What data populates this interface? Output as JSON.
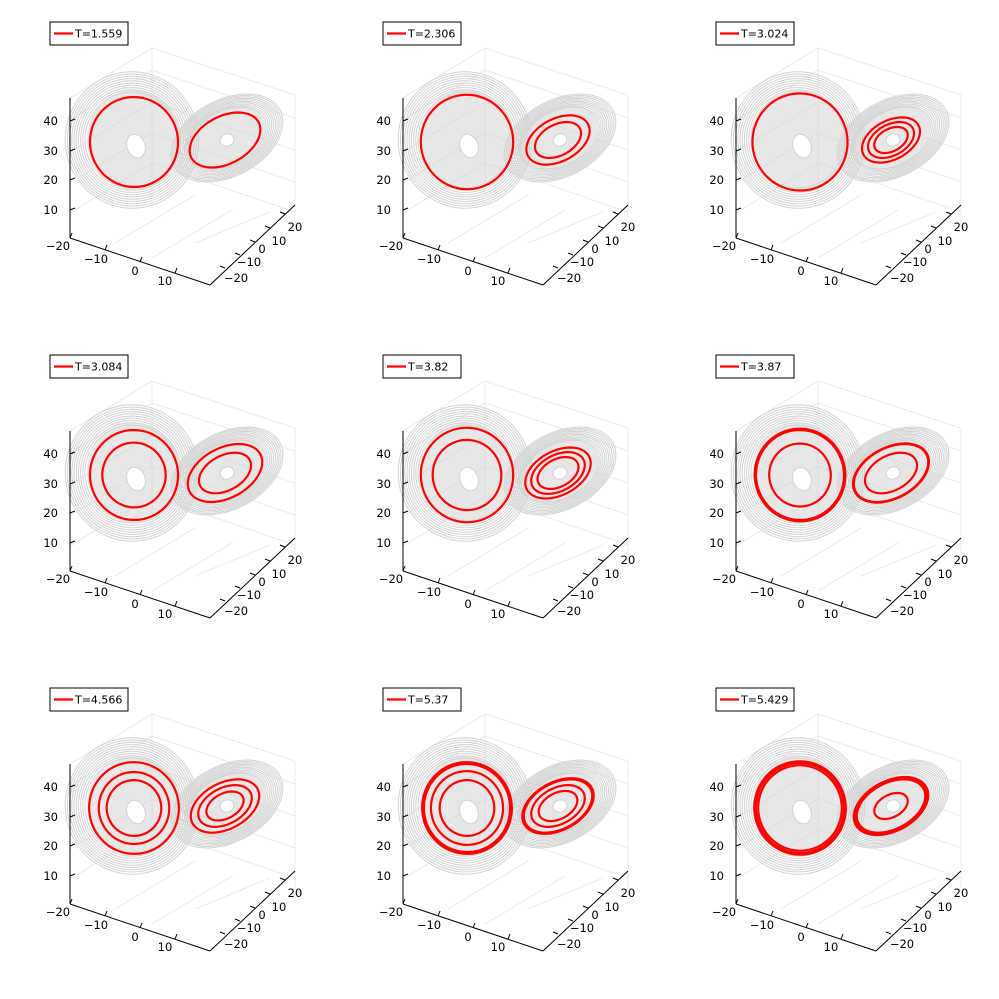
{
  "chart_data": [
    {
      "type": "line",
      "legend": "T=1.559",
      "loops": {
        "left": [
          1.0
        ],
        "right": [
          0.95
        ]
      },
      "legend_position": "top-left",
      "ticks": {
        "z": [
          "10",
          "20",
          "30",
          "40"
        ],
        "x": [
          "−20",
          "−10",
          "0",
          "10"
        ],
        "y": [
          "20",
          "10",
          "0",
          "−10",
          "−20"
        ]
      },
      "colors": {
        "orbit": "#ff0000",
        "attractor": "#d3d3d3"
      }
    },
    {
      "type": "line",
      "legend": "T=2.306",
      "loops": {
        "left": [
          1.05
        ],
        "right": [
          0.62,
          0.85
        ]
      },
      "legend_position": "top-left",
      "ticks": {
        "z": [
          "10",
          "20",
          "30",
          "40"
        ],
        "x": [
          "−20",
          "−10",
          "0",
          "10"
        ],
        "y": [
          "20",
          "10",
          "0",
          "−10",
          "−20"
        ]
      },
      "colors": {
        "orbit": "#ff0000",
        "attractor": "#d3d3d3"
      }
    },
    {
      "type": "line",
      "legend": "T=3.024",
      "loops": {
        "left": [
          1.08
        ],
        "right": [
          0.45,
          0.62,
          0.78
        ]
      },
      "legend_position": "top-left",
      "ticks": {
        "z": [
          "10",
          "20",
          "30",
          "40"
        ],
        "x": [
          "−20",
          "−10",
          "0",
          "10"
        ],
        "y": [
          "20",
          "10",
          "0",
          "−10",
          "−20"
        ]
      },
      "colors": {
        "orbit": "#ff0000",
        "attractor": "#d3d3d3"
      }
    },
    {
      "type": "line",
      "legend": "T=3.084",
      "loops": {
        "left": [
          0.72,
          1.0
        ],
        "right": [
          0.7,
          1.0
        ]
      },
      "legend_position": "top-left",
      "ticks": {
        "z": [
          "10",
          "20",
          "30",
          "40"
        ],
        "x": [
          "−20",
          "−10",
          "0",
          "10"
        ],
        "y": [
          "20",
          "10",
          "0",
          "−10",
          "−20"
        ]
      },
      "colors": {
        "orbit": "#ff0000",
        "attractor": "#d3d3d3"
      }
    },
    {
      "type": "line",
      "legend": "T=3.82",
      "loops": {
        "left": [
          0.78,
          1.05
        ],
        "right": [
          0.55,
          0.72,
          0.88
        ]
      },
      "legend_position": "top-left",
      "ticks": {
        "z": [
          "10",
          "20",
          "30",
          "40"
        ],
        "x": [
          "−20",
          "−10",
          "0",
          "10"
        ],
        "y": [
          "20",
          "10",
          "0",
          "−10",
          "−20"
        ]
      },
      "colors": {
        "orbit": "#ff0000",
        "attractor": "#d3d3d3"
      }
    },
    {
      "type": "line",
      "legend": "T=3.87",
      "loops": {
        "left": [
          0.7,
          1.0,
          1.03
        ],
        "right": [
          0.7,
          1.0,
          1.02
        ]
      },
      "legend_position": "top-left",
      "ticks": {
        "z": [
          "10",
          "20",
          "30",
          "40"
        ],
        "x": [
          "−20",
          "−10",
          "0",
          "10"
        ],
        "y": [
          "20",
          "10",
          "0",
          "−10",
          "−20"
        ]
      },
      "colors": {
        "orbit": "#ff0000",
        "attractor": "#d3d3d3"
      }
    },
    {
      "type": "line",
      "legend": "T=4.566",
      "loops": {
        "left": [
          0.62,
          0.8,
          1.02
        ],
        "right": [
          0.5,
          0.72,
          0.92
        ]
      },
      "legend_position": "top-left",
      "ticks": {
        "z": [
          "10",
          "20",
          "30",
          "40"
        ],
        "x": [
          "−20",
          "−10",
          "0",
          "10"
        ],
        "y": [
          "20",
          "10",
          "0",
          "−10",
          "−20"
        ]
      },
      "colors": {
        "orbit": "#ff0000",
        "attractor": "#d3d3d3"
      }
    },
    {
      "type": "line",
      "legend": "T=5.37",
      "loops": {
        "left": [
          0.62,
          0.82,
          0.98,
          1.02
        ],
        "right": [
          0.52,
          0.72,
          0.92,
          0.96
        ]
      },
      "legend_position": "top-left",
      "ticks": {
        "z": [
          "10",
          "20",
          "30",
          "40"
        ],
        "x": [
          "−20",
          "−10",
          "0",
          "10"
        ],
        "y": [
          "20",
          "10",
          "0",
          "−10",
          "−20"
        ]
      },
      "colors": {
        "orbit": "#ff0000",
        "attractor": "#d3d3d3"
      }
    },
    {
      "type": "line",
      "legend": "T=5.429",
      "loops": {
        "left": [
          0.95,
          1.0,
          1.04
        ],
        "right": [
          0.45,
          0.92,
          0.96,
          1.0
        ]
      },
      "legend_position": "top-left",
      "ticks": {
        "z": [
          "10",
          "20",
          "30",
          "40"
        ],
        "x": [
          "−20",
          "−10",
          "0",
          "10"
        ],
        "y": [
          "20",
          "10",
          "0",
          "−10",
          "−20"
        ]
      },
      "colors": {
        "orbit": "#ff0000",
        "attractor": "#d3d3d3"
      }
    }
  ]
}
